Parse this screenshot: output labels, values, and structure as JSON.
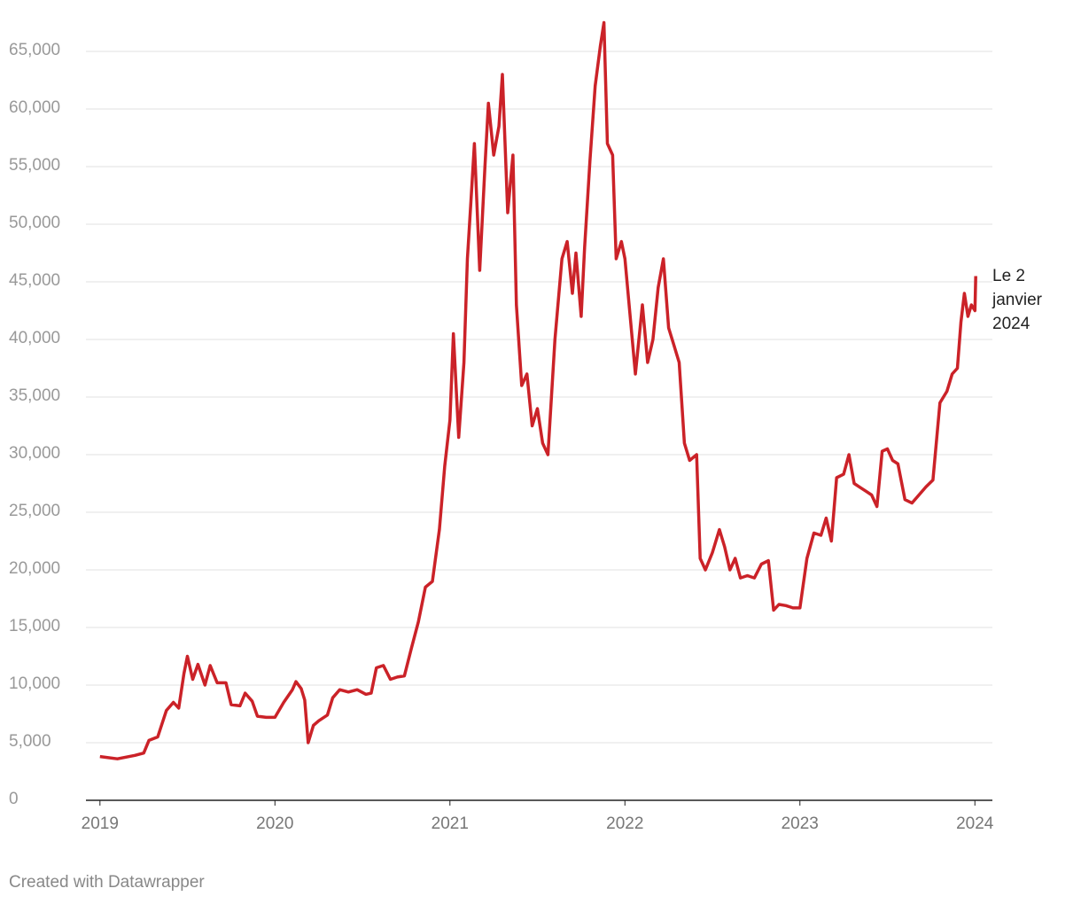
{
  "chart_data": {
    "type": "line",
    "annotation": "Le 2 janvier 2024",
    "source": "Created with Datawrapper",
    "series": [
      {
        "color": "#cb2228",
        "x": [
          2019.0,
          2019.1,
          2019.2,
          2019.25,
          2019.28,
          2019.33,
          2019.38,
          2019.42,
          2019.45,
          2019.48,
          2019.5,
          2019.53,
          2019.56,
          2019.6,
          2019.63,
          2019.67,
          2019.72,
          2019.75,
          2019.8,
          2019.83,
          2019.87,
          2019.9,
          2019.95,
          2020.0,
          2020.05,
          2020.1,
          2020.12,
          2020.15,
          2020.17,
          2020.19,
          2020.22,
          2020.25,
          2020.3,
          2020.33,
          2020.37,
          2020.42,
          2020.47,
          2020.52,
          2020.55,
          2020.58,
          2020.62,
          2020.66,
          2020.7,
          2020.74,
          2020.78,
          2020.82,
          2020.86,
          2020.9,
          2020.94,
          2020.97,
          2021.0,
          2021.02,
          2021.05,
          2021.08,
          2021.1,
          2021.12,
          2021.14,
          2021.17,
          2021.2,
          2021.22,
          2021.25,
          2021.28,
          2021.3,
          2021.33,
          2021.36,
          2021.38,
          2021.41,
          2021.44,
          2021.47,
          2021.5,
          2021.53,
          2021.56,
          2021.6,
          2021.64,
          2021.67,
          2021.7,
          2021.72,
          2021.75,
          2021.77,
          2021.8,
          2021.83,
          2021.86,
          2021.88,
          2021.9,
          2021.93,
          2021.95,
          2021.98,
          2022.0,
          2022.03,
          2022.06,
          2022.1,
          2022.13,
          2022.16,
          2022.19,
          2022.22,
          2022.25,
          2022.28,
          2022.31,
          2022.34,
          2022.37,
          2022.41,
          2022.43,
          2022.46,
          2022.5,
          2022.54,
          2022.57,
          2022.6,
          2022.63,
          2022.66,
          2022.7,
          2022.74,
          2022.78,
          2022.82,
          2022.85,
          2022.88,
          2022.92,
          2022.96,
          2023.0,
          2023.04,
          2023.08,
          2023.12,
          2023.15,
          2023.18,
          2023.21,
          2023.25,
          2023.28,
          2023.31,
          2023.34,
          2023.38,
          2023.41,
          2023.44,
          2023.47,
          2023.5,
          2023.53,
          2023.56,
          2023.6,
          2023.64,
          2023.68,
          2023.72,
          2023.76,
          2023.8,
          2023.84,
          2023.87,
          2023.9,
          2023.92,
          2023.94,
          2023.96,
          2023.98,
          2024.0,
          2024.005
        ],
        "values": [
          3800,
          3600,
          3900,
          4100,
          5200,
          5500,
          7800,
          8500,
          8000,
          11000,
          12500,
          10500,
          11800,
          10000,
          11700,
          10200,
          10200,
          8300,
          8200,
          9300,
          8600,
          7300,
          7200,
          7200,
          8500,
          9600,
          10300,
          9700,
          8700,
          5000,
          6500,
          6900,
          7400,
          8900,
          9600,
          9400,
          9600,
          9200,
          9300,
          11500,
          11700,
          10500,
          10700,
          10800,
          13200,
          15500,
          18500,
          19000,
          23500,
          29000,
          33000,
          40500,
          31500,
          38000,
          47000,
          52000,
          57000,
          46000,
          55000,
          60500,
          56000,
          58500,
          63000,
          51000,
          56000,
          43000,
          36000,
          37000,
          32500,
          34000,
          31000,
          30000,
          40000,
          47000,
          48500,
          44000,
          47500,
          42000,
          48000,
          55500,
          62000,
          65500,
          67500,
          57000,
          56000,
          47000,
          48500,
          47000,
          42000,
          37000,
          43000,
          38000,
          40000,
          44500,
          47000,
          41000,
          39500,
          38000,
          31000,
          29500,
          30000,
          21000,
          20000,
          21500,
          23500,
          22000,
          20000,
          21000,
          19300,
          19500,
          19300,
          20500,
          20800,
          16500,
          17000,
          16900,
          16700,
          16700,
          21000,
          23200,
          23000,
          24500,
          22500,
          28000,
          28300,
          30000,
          27500,
          27200,
          26800,
          26500,
          25500,
          30300,
          30500,
          29500,
          29200,
          26100,
          25800,
          26500,
          27200,
          27800,
          34500,
          35500,
          37000,
          37500,
          41500,
          44000,
          42000,
          43000,
          42500,
          45500
        ]
      }
    ],
    "xlim": [
      2018.92,
      2024.1
    ],
    "xticks": [
      2019,
      2020,
      2021,
      2022,
      2023,
      2024
    ],
    "ylim": [
      0,
      65000
    ],
    "yticks": [
      0,
      {
        "value": 5000,
        "label": "5,000"
      },
      {
        "value": 10000,
        "label": "10,000"
      },
      {
        "value": 15000,
        "label": "15,000"
      },
      {
        "value": 20000,
        "label": "20,000"
      },
      {
        "value": 25000,
        "label": "25,000"
      },
      {
        "value": 30000,
        "label": "30,000"
      },
      {
        "value": 35000,
        "label": "35,000"
      },
      {
        "value": 40000,
        "label": "40,000"
      },
      {
        "value": 45000,
        "label": "45,000"
      },
      {
        "value": 50000,
        "label": "50,000"
      },
      {
        "value": 55000,
        "label": "55,000"
      },
      {
        "value": 60000,
        "label": "60,000"
      },
      {
        "value": 65000,
        "label": "65,000"
      }
    ],
    "grid": true
  }
}
